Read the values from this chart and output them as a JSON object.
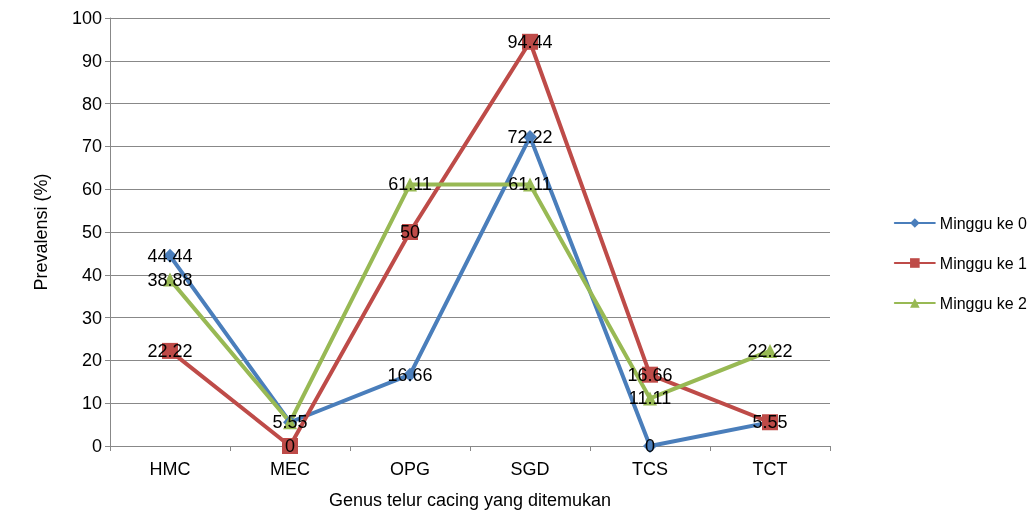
{
  "chart_data": {
    "type": "line",
    "xlabel": "Genus telur cacing yang ditemukan",
    "ylabel": "Prevalensi (%)",
    "categories": [
      "HMC",
      "MEC",
      "OPG",
      "SGD",
      "TCS",
      "TCT"
    ],
    "ylim": [
      0,
      100
    ],
    "yticks": [
      0,
      10,
      20,
      30,
      40,
      50,
      60,
      70,
      80,
      90,
      100
    ],
    "grid": "y",
    "legend": "right",
    "series": [
      {
        "name": "Minggu ke 0",
        "color": "#4a7ebb",
        "marker": "diamond",
        "values": [
          44.44,
          5.55,
          16.66,
          72.22,
          0,
          5.55
        ],
        "value_labels": [
          "44.44",
          null,
          "16.66",
          "72.22",
          "0",
          null
        ]
      },
      {
        "name": "Minggu ke 1",
        "color": "#be4b48",
        "marker": "square",
        "values": [
          22.22,
          0,
          50,
          94.44,
          16.66,
          5.55
        ],
        "value_labels": [
          "22.22",
          "0",
          "50",
          "94.44",
          "16.66",
          "5.55"
        ]
      },
      {
        "name": "Minggu ke 2",
        "color": "#98b954",
        "marker": "triangle",
        "values": [
          38.88,
          5.55,
          61.11,
          61.11,
          11.11,
          22.22
        ],
        "value_labels": [
          "38.88",
          "5.55",
          "61.11",
          "61.11",
          "11.11",
          "22.22"
        ]
      }
    ]
  }
}
